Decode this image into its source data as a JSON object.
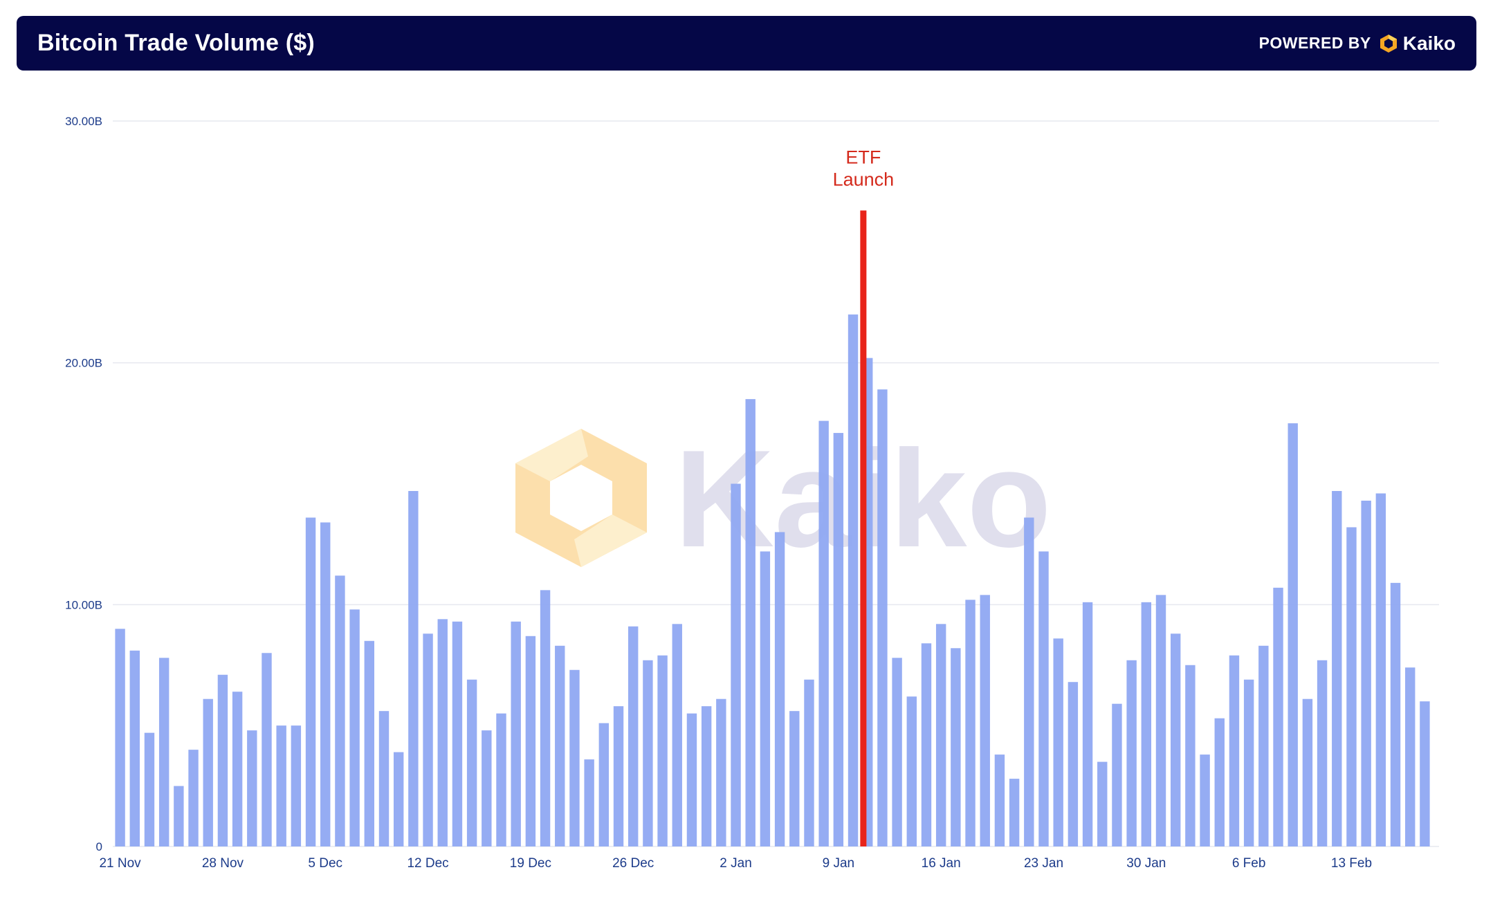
{
  "header": {
    "title": "Bitcoin Trade Volume ($)",
    "powered_by": "POWERED BY",
    "brand": "Kaiko"
  },
  "watermark": {
    "text": "Kaiko"
  },
  "colors": {
    "header_bg": "#050747",
    "bar": "#8fa8f2",
    "annotation": "#e8241a",
    "axis_text": "#1c3b8a",
    "logo_orange": "#f5a623",
    "logo_yellow": "#f9c74f"
  },
  "chart_data": {
    "type": "bar",
    "title": "Bitcoin Trade Volume ($)",
    "xlabel": "",
    "ylabel": "",
    "ylim": [
      0,
      30
    ],
    "y_unit": "B",
    "y_ticks": [
      {
        "value": 0,
        "label": "0"
      },
      {
        "value": 10,
        "label": "10.00B"
      },
      {
        "value": 20,
        "label": "20.00B"
      },
      {
        "value": 30,
        "label": "30.00B"
      }
    ],
    "x_tick_labels": [
      {
        "index": 0,
        "label": "21 Nov"
      },
      {
        "index": 7,
        "label": "28 Nov"
      },
      {
        "index": 14,
        "label": "5 Dec"
      },
      {
        "index": 21,
        "label": "12 Dec"
      },
      {
        "index": 28,
        "label": "19 Dec"
      },
      {
        "index": 35,
        "label": "26 Dec"
      },
      {
        "index": 42,
        "label": "2 Jan"
      },
      {
        "index": 49,
        "label": "9 Jan"
      },
      {
        "index": 56,
        "label": "16 Jan"
      },
      {
        "index": 63,
        "label": "23 Jan"
      },
      {
        "index": 70,
        "label": "30 Jan"
      },
      {
        "index": 77,
        "label": "6 Feb"
      },
      {
        "index": 84,
        "label": "13 Feb"
      }
    ],
    "grid": true,
    "series": [
      {
        "values": [
          9.0,
          8.1,
          4.7,
          7.8,
          2.5,
          4.0,
          6.1,
          7.1,
          6.4,
          4.8,
          8.0,
          5.0,
          5.0,
          13.6,
          13.4,
          11.2,
          9.8,
          8.5,
          5.6,
          3.9,
          14.7,
          8.8,
          9.4,
          9.3,
          6.9,
          4.8,
          5.5,
          9.3,
          8.7,
          10.6,
          8.3,
          7.3,
          3.6,
          5.1,
          5.8,
          9.1,
          7.7,
          7.9,
          9.2,
          5.5,
          5.8,
          6.1,
          15.0,
          18.5,
          12.2,
          13.0,
          5.6,
          6.9,
          17.6,
          17.1,
          22.0,
          20.2,
          18.9,
          7.8,
          6.2,
          8.4,
          9.2,
          8.2,
          10.2,
          10.4,
          3.8,
          2.8,
          13.6,
          12.2,
          8.6,
          6.8,
          10.1,
          3.5,
          5.9,
          7.7,
          10.1,
          10.4,
          8.8,
          7.5,
          3.8,
          5.3,
          7.9,
          6.9,
          8.3,
          10.7,
          17.5,
          6.1,
          7.7,
          14.7,
          13.2,
          14.3,
          14.6,
          10.9,
          7.4,
          6.0
        ]
      }
    ],
    "annotations": [
      {
        "text_line1": "ETF",
        "text_line2": "Launch",
        "x_index": 50.7,
        "y_top": 26.3
      }
    ]
  }
}
